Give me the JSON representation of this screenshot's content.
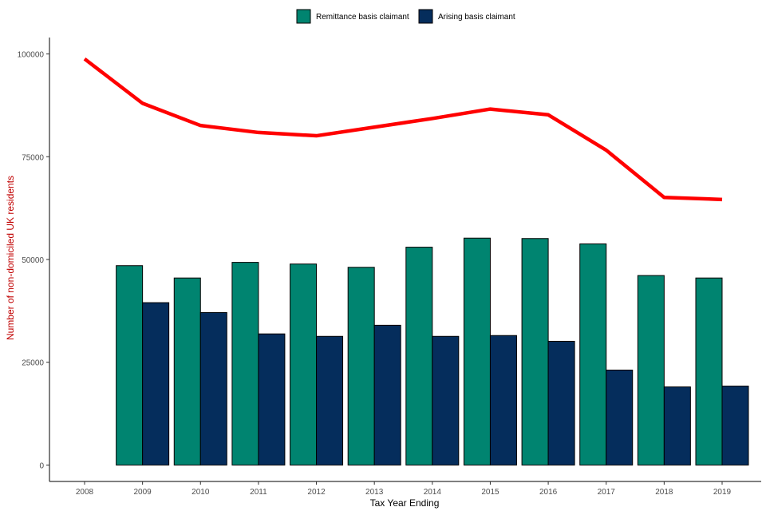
{
  "chart_data": {
    "type": "bar",
    "xlabel": "Tax Year Ending",
    "ylabel": "Number of non-domiciled UK residents",
    "ylim": [
      -4000,
      104000
    ],
    "yticks": [
      0,
      25000,
      50000,
      75000,
      100000
    ],
    "categories": [
      "2008",
      "2009",
      "2010",
      "2011",
      "2012",
      "2013",
      "2014",
      "2015",
      "2016",
      "2017",
      "2018",
      "2019"
    ],
    "series": [
      {
        "name": "Remittance basis claimant",
        "color": "#008470",
        "values": [
          null,
          48500,
          45500,
          49300,
          48900,
          48100,
          53000,
          55200,
          55100,
          53800,
          46100,
          45500
        ]
      },
      {
        "name": "Arising basis claimant",
        "color": "#052D5C",
        "values": [
          null,
          39500,
          37100,
          31900,
          31300,
          34000,
          31300,
          31500,
          30100,
          23100,
          19000,
          19200
        ]
      }
    ],
    "line": {
      "color": "#FF0000",
      "values": [
        98800,
        88000,
        82600,
        80900,
        80100,
        82200,
        84300,
        86600,
        85200,
        76600,
        65100,
        64600
      ]
    },
    "legend_position": "top",
    "grid": false
  }
}
